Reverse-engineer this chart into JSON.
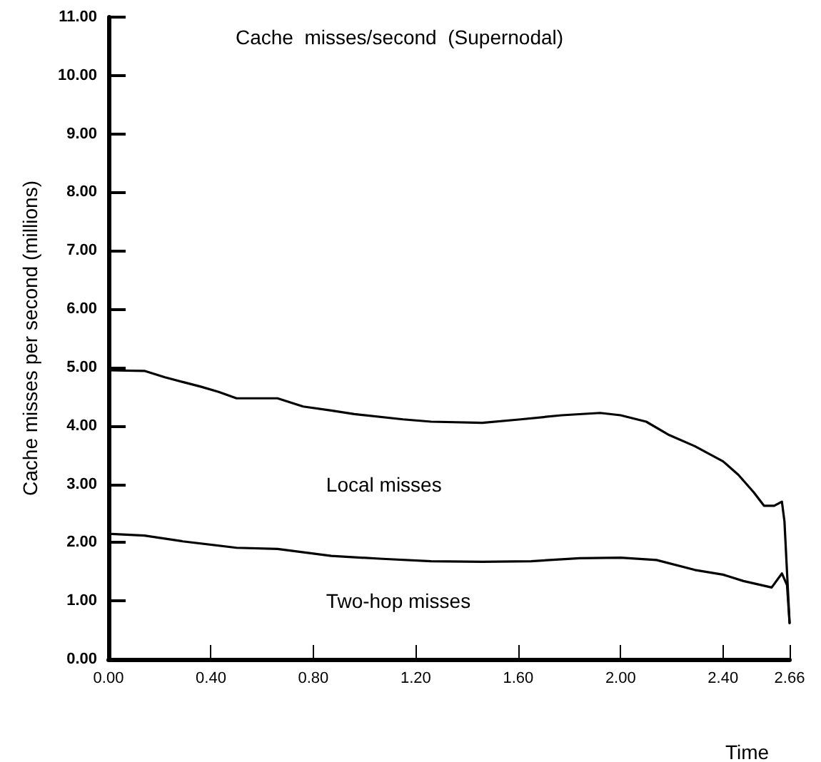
{
  "chart_data": {
    "type": "line",
    "title": "Cache  misses/second  (Supernodal)",
    "xlabel": "Time",
    "ylabel": "Cache misses per second (millions)",
    "series": [
      {
        "name": "Local misses",
        "color": "#000000",
        "x": [
          0,
          0.14,
          0.22,
          0.29,
          0.36,
          0.43,
          0.5,
          0.66,
          0.76,
          0.87,
          0.96,
          1.15,
          1.26,
          1.46,
          1.61,
          1.77,
          1.92,
          2.0,
          2.1,
          2.19,
          2.29,
          2.4,
          2.46,
          2.52,
          2.56,
          2.6,
          2.63,
          2.64,
          2.66
        ],
        "values": [
          4.95,
          4.94,
          4.83,
          4.75,
          4.67,
          4.58,
          4.47,
          4.47,
          4.33,
          4.26,
          4.2,
          4.11,
          4.07,
          4.05,
          4.11,
          4.18,
          4.22,
          4.18,
          4.07,
          3.84,
          3.65,
          3.39,
          3.16,
          2.86,
          2.63,
          2.63,
          2.7,
          2.36,
          0.62
        ]
      },
      {
        "name": "Two-hop misses",
        "color": "#000000",
        "x": [
          0,
          0.14,
          0.29,
          0.5,
          0.66,
          0.87,
          1.07,
          1.26,
          1.46,
          1.65,
          1.84,
          2.0,
          2.14,
          2.29,
          2.4,
          2.48,
          2.59,
          2.63,
          2.65,
          2.66
        ],
        "values": [
          2.15,
          2.12,
          2.02,
          1.91,
          1.89,
          1.77,
          1.72,
          1.68,
          1.67,
          1.68,
          1.73,
          1.74,
          1.7,
          1.53,
          1.45,
          1.34,
          1.23,
          1.47,
          1.27,
          0.62
        ]
      }
    ],
    "xlim": [
      0,
      2.66
    ],
    "xticks": [
      {
        "value": 0,
        "label": "0.00"
      },
      {
        "value": 0.4,
        "label": "0.40"
      },
      {
        "value": 0.8,
        "label": "0.80"
      },
      {
        "value": 1.2,
        "label": "1.20"
      },
      {
        "value": 1.6,
        "label": "1.60"
      },
      {
        "value": 2.0,
        "label": "2.00"
      },
      {
        "value": 2.4,
        "label": "2.40"
      },
      {
        "value": 2.66,
        "label": "2.66"
      }
    ],
    "ylim": [
      0,
      11
    ],
    "yticks": [
      {
        "value": 0,
        "label": "0.00"
      },
      {
        "value": 1,
        "label": "1.00"
      },
      {
        "value": 2,
        "label": "2.00"
      },
      {
        "value": 3,
        "label": "3.00"
      },
      {
        "value": 4,
        "label": "4.00"
      },
      {
        "value": 5,
        "label": "5.00"
      },
      {
        "value": 6,
        "label": "6.00"
      },
      {
        "value": 7,
        "label": "7.00"
      },
      {
        "value": 8,
        "label": "8.00"
      },
      {
        "value": 9,
        "label": "9.00"
      },
      {
        "value": 10,
        "label": "10.00"
      },
      {
        "value": 11,
        "label": "11.00"
      }
    ],
    "grid": false,
    "legend": false,
    "marker": "none",
    "line_style": "solid"
  }
}
